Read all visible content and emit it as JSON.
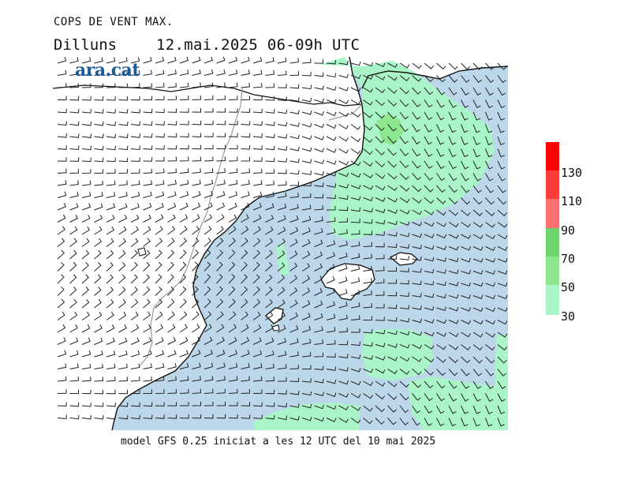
{
  "header": {
    "title": "COPS DE VENT MAX.",
    "day": "Dilluns",
    "datetime": "12.mai.2025 06-09h UTC"
  },
  "brand": {
    "logo_text": "ara.cat",
    "color": "#1f5c97"
  },
  "footer": {
    "credit": "model GFS 0.25 iniciat a les 12 UTC del 10 mai 2025"
  },
  "map": {
    "colors": {
      "sea": "#bdd7ea",
      "land": "#ffffff",
      "coast": "#111111",
      "border": "#9a9a9a",
      "barb": "#222222"
    }
  },
  "colorbar": {
    "labels": [
      "130",
      "110",
      "90",
      "70",
      "50",
      "30"
    ],
    "bins": [
      {
        "from": 30,
        "to": 50,
        "color": "#aaf5c8"
      },
      {
        "from": 50,
        "to": 70,
        "color": "#8ee68e"
      },
      {
        "from": 70,
        "to": 90,
        "color": "#6ed46e"
      },
      {
        "from": 90,
        "to": 110,
        "color": "#ff7070"
      },
      {
        "from": 110,
        "to": 130,
        "color": "#ff3c3c"
      },
      {
        "from": 130,
        "to": 150,
        "color": "#ff0000"
      }
    ]
  }
}
